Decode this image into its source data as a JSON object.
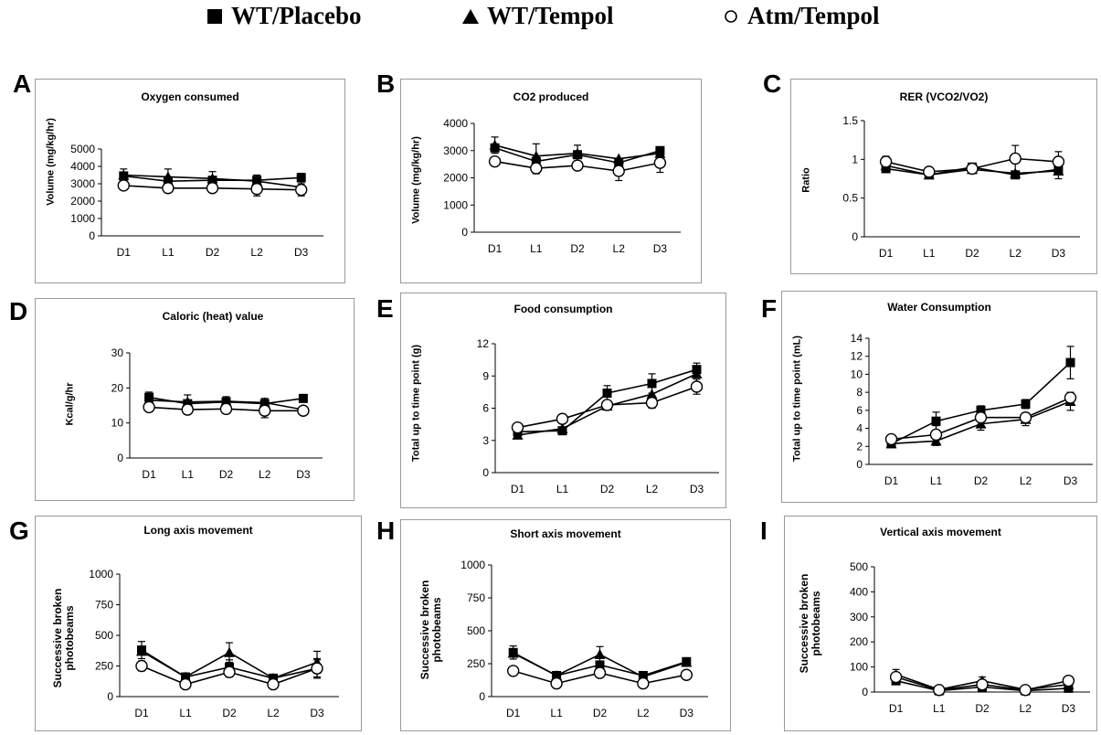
{
  "legend": [
    {
      "marker": "square-filled",
      "label": "WT/Placebo"
    },
    {
      "marker": "triangle-filled",
      "label": "WT/Tempol"
    },
    {
      "marker": "circle-open",
      "label": "Atm/Tempol"
    }
  ],
  "chart_data": [
    {
      "panel": "A",
      "type": "line",
      "title": "Oxygen consumed",
      "ylabel": "Volume (mg/kg/hr)",
      "categories": [
        "D1",
        "L1",
        "D2",
        "L2",
        "D3"
      ],
      "ylim": [
        0,
        5000
      ],
      "yticks": [
        "0",
        "1000",
        "2000",
        "3000",
        "4000",
        "5000"
      ],
      "series": [
        {
          "name": "WT/Placebo",
          "marker": "square-filled",
          "values": [
            3450,
            3150,
            3200,
            3200,
            3350
          ],
          "err": [
            400,
            0,
            0,
            300,
            250
          ]
        },
        {
          "name": "WT/Tempol",
          "marker": "triangle-filled",
          "values": [
            3500,
            3400,
            3300,
            3150,
            2800
          ],
          "err": [
            0,
            450,
            400,
            0,
            0
          ]
        },
        {
          "name": "Atm/Tempol",
          "marker": "circle-open",
          "values": [
            2900,
            2750,
            2750,
            2700,
            2650
          ],
          "err": [
            0,
            0,
            0,
            400,
            350
          ]
        }
      ]
    },
    {
      "panel": "B",
      "type": "line",
      "title": "CO2 produced",
      "ylabel": "Volume (mg/kg/hr)",
      "categories": [
        "D1",
        "L1",
        "D2",
        "L2",
        "D3"
      ],
      "ylim": [
        0,
        4000
      ],
      "yticks": [
        "0",
        "1000",
        "2000",
        "3000",
        "4000"
      ],
      "series": [
        {
          "name": "WT/Placebo",
          "marker": "square-filled",
          "values": [
            3100,
            2600,
            2850,
            2550,
            3000
          ],
          "err": [
            0,
            0,
            0,
            0,
            0
          ]
        },
        {
          "name": "WT/Tempol",
          "marker": "triangle-filled",
          "values": [
            3200,
            2800,
            2900,
            2700,
            2900
          ],
          "err": [
            300,
            450,
            300,
            0,
            0
          ]
        },
        {
          "name": "Atm/Tempol",
          "marker": "circle-open",
          "values": [
            2600,
            2350,
            2450,
            2250,
            2550
          ],
          "err": [
            0,
            200,
            0,
            350,
            350
          ]
        }
      ]
    },
    {
      "panel": "C",
      "type": "line",
      "title": "RER (VCO2/VO2)",
      "ylabel": "Ratio",
      "categories": [
        "D1",
        "L1",
        "D2",
        "L2",
        "D3"
      ],
      "ylim": [
        0,
        1.5
      ],
      "yticks": [
        "0",
        "0.5",
        "1",
        "1.5"
      ],
      "series": [
        {
          "name": "WT/Placebo",
          "marker": "square-filled",
          "values": [
            0.88,
            0.8,
            0.9,
            0.8,
            0.87
          ],
          "err": [
            0,
            0,
            0,
            0,
            0
          ]
        },
        {
          "name": "WT/Tempol",
          "marker": "triangle-filled",
          "values": [
            0.92,
            0.8,
            0.87,
            0.82,
            0.85
          ],
          "err": [
            0,
            0,
            0,
            0,
            0.1
          ]
        },
        {
          "name": "Atm/Tempol",
          "marker": "circle-open",
          "values": [
            0.97,
            0.84,
            0.88,
            1.01,
            0.97
          ],
          "err": [
            0.07,
            0,
            0,
            0.17,
            0.13
          ]
        }
      ]
    },
    {
      "panel": "D",
      "type": "line",
      "title": "Caloric (heat) value",
      "ylabel": "Kcal/g/hr",
      "categories": [
        "D1",
        "L1",
        "D2",
        "L2",
        "D3"
      ],
      "ylim": [
        0,
        30
      ],
      "yticks": [
        "0",
        "10",
        "20",
        "30"
      ],
      "series": [
        {
          "name": "WT/Placebo",
          "marker": "square-filled",
          "values": [
            17.3,
            15.5,
            16.0,
            15.5,
            17.0
          ],
          "err": [
            1.5,
            2.5,
            1.5,
            1.5,
            0
          ]
        },
        {
          "name": "WT/Tempol",
          "marker": "triangle-filled",
          "values": [
            16.5,
            16.0,
            16.2,
            15.8,
            13.8
          ],
          "err": [
            0,
            0,
            0,
            0,
            0
          ]
        },
        {
          "name": "Atm/Tempol",
          "marker": "circle-open",
          "values": [
            14.5,
            13.8,
            14.0,
            13.5,
            13.5
          ],
          "err": [
            0,
            0,
            0,
            2,
            0
          ]
        }
      ]
    },
    {
      "panel": "E",
      "type": "line",
      "title": "Food consumption",
      "ylabel": "Total up to time point (g)",
      "categories": [
        "D1",
        "L1",
        "D2",
        "L2",
        "D3"
      ],
      "ylim": [
        0,
        12
      ],
      "yticks": [
        "0",
        "3",
        "6",
        "9",
        "12"
      ],
      "series": [
        {
          "name": "WT/Placebo",
          "marker": "square-filled",
          "values": [
            3.8,
            3.9,
            7.4,
            8.3,
            9.6
          ],
          "err": [
            0.3,
            0.3,
            0.7,
            0.9,
            0.6
          ]
        },
        {
          "name": "WT/Tempol",
          "marker": "triangle-filled",
          "values": [
            3.5,
            4.1,
            6.2,
            7.3,
            9.2
          ],
          "err": [
            0,
            0,
            0,
            0,
            0
          ]
        },
        {
          "name": "Atm/Tempol",
          "marker": "circle-open",
          "values": [
            4.2,
            5.0,
            6.3,
            6.5,
            8.0
          ],
          "err": [
            0,
            0,
            0,
            0.5,
            0.7
          ]
        }
      ]
    },
    {
      "panel": "F",
      "type": "line",
      "title": "Water Consumption",
      "ylabel": "Total up to time point (mL)",
      "categories": [
        "D1",
        "L1",
        "D2",
        "L2",
        "D3"
      ],
      "ylim": [
        0,
        14
      ],
      "yticks": [
        "0",
        "2",
        "4",
        "6",
        "8",
        "10",
        "12",
        "14"
      ],
      "series": [
        {
          "name": "WT/Placebo",
          "marker": "square-filled",
          "values": [
            2.3,
            4.8,
            6.0,
            6.7,
            11.3
          ],
          "err": [
            0,
            1.0,
            0.5,
            0.5,
            1.8
          ]
        },
        {
          "name": "WT/Tempol",
          "marker": "triangle-filled",
          "values": [
            2.3,
            2.6,
            4.5,
            5.0,
            7.0
          ],
          "err": [
            0,
            0.5,
            0.7,
            0.7,
            1.0
          ]
        },
        {
          "name": "Atm/Tempol",
          "marker": "circle-open",
          "values": [
            2.8,
            3.3,
            5.2,
            5.2,
            7.4
          ],
          "err": [
            0,
            1.0,
            0,
            0,
            0.5
          ]
        }
      ]
    },
    {
      "panel": "G",
      "type": "line",
      "title": "Long axis movement",
      "ylabel": "Successive broken photobeams",
      "categories": [
        "D1",
        "L1",
        "D2",
        "L2",
        "D3"
      ],
      "ylim": [
        0,
        1000
      ],
      "yticks": [
        "0",
        "250",
        "500",
        "750",
        "1000"
      ],
      "series": [
        {
          "name": "WT/Placebo",
          "marker": "square-filled",
          "values": [
            380,
            160,
            240,
            150,
            230
          ],
          "err": [
            70,
            0,
            60,
            0,
            80
          ]
        },
        {
          "name": "WT/Tempol",
          "marker": "triangle-filled",
          "values": [
            370,
            160,
            360,
            150,
            280
          ],
          "err": [
            0,
            0,
            80,
            0,
            90
          ]
        },
        {
          "name": "Atm/Tempol",
          "marker": "circle-open",
          "values": [
            250,
            100,
            200,
            100,
            230
          ],
          "err": [
            40,
            0,
            40,
            0,
            70
          ]
        }
      ]
    },
    {
      "panel": "H",
      "type": "line",
      "title": "Short axis movement",
      "ylabel": "Successive broken photobeams",
      "categories": [
        "D1",
        "L1",
        "D2",
        "L2",
        "D3"
      ],
      "ylim": [
        0,
        1000
      ],
      "yticks": [
        "0",
        "250",
        "500",
        "750",
        "1000"
      ],
      "series": [
        {
          "name": "WT/Placebo",
          "marker": "square-filled",
          "values": [
            335,
            160,
            240,
            160,
            265
          ],
          "err": [
            50,
            0,
            0,
            0,
            30
          ]
        },
        {
          "name": "WT/Tempol",
          "marker": "triangle-filled",
          "values": [
            330,
            160,
            320,
            150,
            260
          ],
          "err": [
            0,
            0,
            60,
            0,
            0
          ]
        },
        {
          "name": "Atm/Tempol",
          "marker": "circle-open",
          "values": [
            195,
            100,
            180,
            100,
            165
          ],
          "err": [
            0,
            0,
            0,
            0,
            0
          ]
        }
      ]
    },
    {
      "panel": "I",
      "type": "line",
      "title": "Vertical axis movement",
      "ylabel": "Successive broken photobeams",
      "categories": [
        "D1",
        "L1",
        "D2",
        "L2",
        "D3"
      ],
      "ylim": [
        0,
        500
      ],
      "yticks": [
        "0",
        "100",
        "200",
        "300",
        "400",
        "500"
      ],
      "series": [
        {
          "name": "WT/Placebo",
          "marker": "square-filled",
          "values": [
            45,
            5,
            20,
            5,
            15
          ],
          "err": [
            0,
            0,
            0,
            0,
            0
          ]
        },
        {
          "name": "WT/Tempol",
          "marker": "triangle-filled",
          "values": [
            70,
            10,
            45,
            10,
            30
          ],
          "err": [
            20,
            0,
            15,
            0,
            0
          ]
        },
        {
          "name": "Atm/Tempol",
          "marker": "circle-open",
          "values": [
            60,
            8,
            30,
            8,
            45
          ],
          "err": [
            0,
            0,
            0,
            0,
            0
          ]
        }
      ]
    }
  ]
}
